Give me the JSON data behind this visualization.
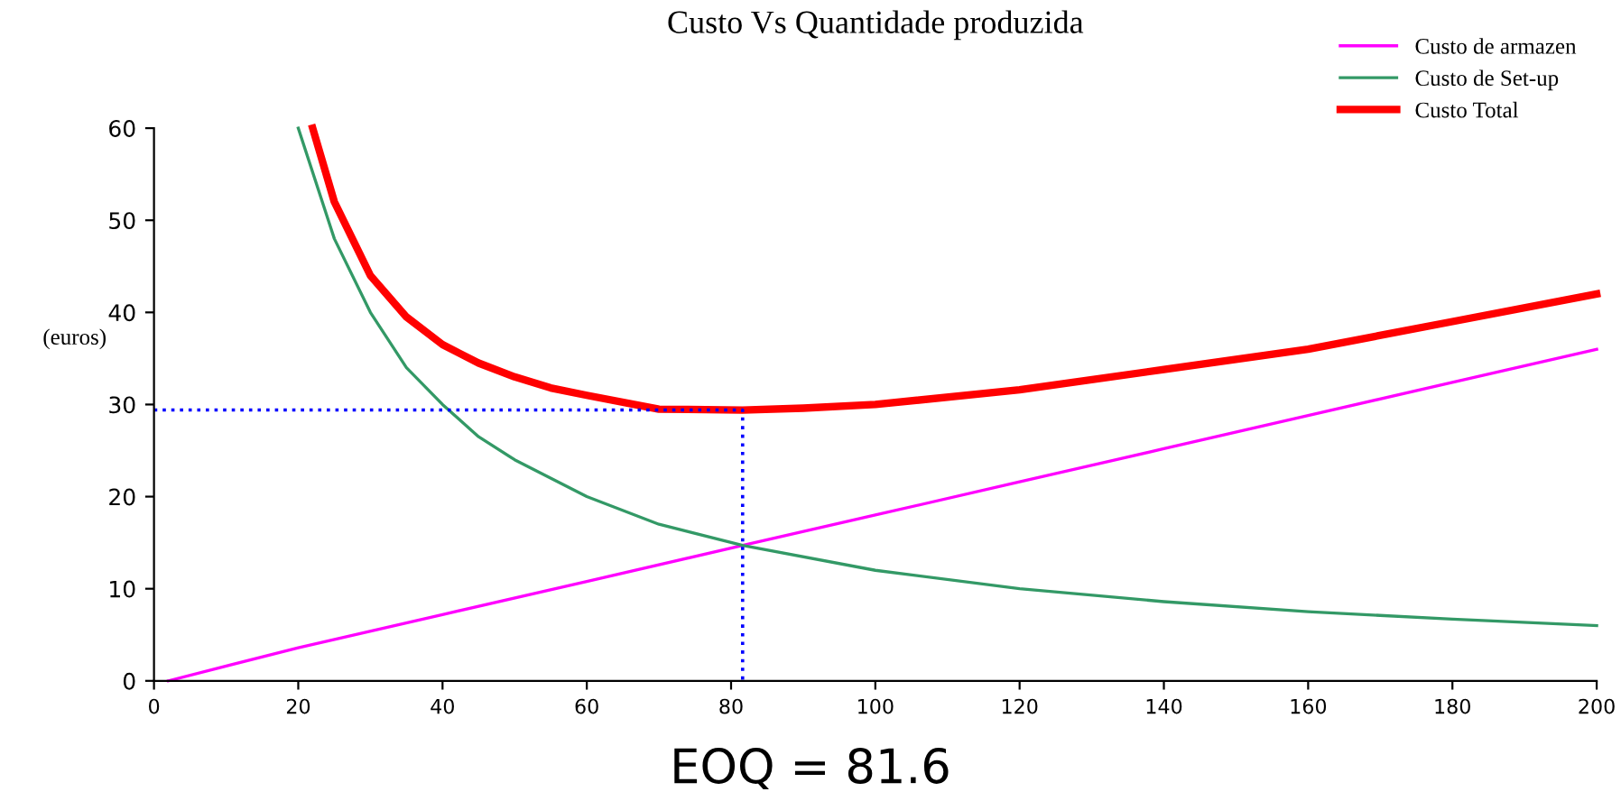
{
  "chart_data": {
    "type": "line",
    "title": "Custo Vs Quantidade produzida",
    "ylabel": "(euros)",
    "annotations": [
      "EOQ = 81.6"
    ],
    "xlim": [
      0,
      200
    ],
    "ylim": [
      0,
      60
    ],
    "xticks": [
      0,
      20,
      40,
      60,
      80,
      100,
      120,
      140,
      160,
      180,
      200
    ],
    "yticks": [
      0,
      10,
      20,
      30,
      40,
      50,
      60
    ],
    "grid": false,
    "legend": "top right",
    "marker": "none",
    "line_style": "solid",
    "series": [
      {
        "name": "Custo de armazen",
        "color": "#ff00ff",
        "x": [
          2,
          20,
          40,
          60,
          81.6,
          100,
          120,
          140,
          160,
          180,
          200
        ],
        "values": [
          0,
          3.6,
          7.2,
          10.8,
          14.7,
          18,
          21.6,
          25.2,
          28.8,
          32.4,
          36
        ]
      },
      {
        "name": "Custo de Set-up",
        "color": "#339966",
        "x": [
          20,
          25,
          30,
          35,
          40,
          45,
          50,
          60,
          70,
          81.6,
          100,
          120,
          140,
          160,
          180,
          200
        ],
        "values": [
          60,
          48,
          40,
          34,
          30,
          26.5,
          24,
          20,
          17,
          14.7,
          12,
          10,
          8.6,
          7.5,
          6.7,
          6
        ]
      },
      {
        "name": "Custo Total",
        "color": "#ff0000",
        "x": [
          22,
          25,
          30,
          35,
          40,
          45,
          50,
          55,
          60,
          70,
          81.6,
          90,
          100,
          120,
          140,
          160,
          180,
          200
        ],
        "values": [
          60,
          52,
          44,
          39.5,
          36.5,
          34.5,
          33,
          31.8,
          31,
          29.5,
          29.4,
          29.6,
          30,
          31.6,
          33.8,
          36,
          39,
          42
        ]
      },
      {
        "type": "line",
        "color": "#0000ff",
        "line_style": "dotted",
        "x": [
          0,
          81.6,
          81.6
        ],
        "values": [
          29.4,
          29.4,
          0
        ]
      }
    ]
  }
}
